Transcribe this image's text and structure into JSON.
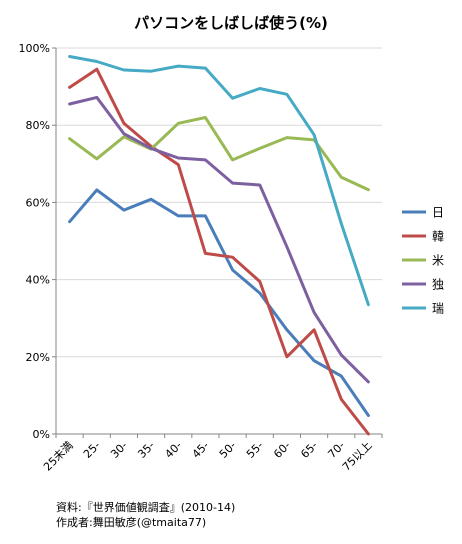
{
  "chart_data": {
    "type": "line",
    "title": "パソコンをしばしば使う(%)",
    "categories": [
      "25未満",
      "25-",
      "30-",
      "35-",
      "40-",
      "45-",
      "50-",
      "55-",
      "60-",
      "65-",
      "70-",
      "75以上"
    ],
    "ylim": [
      0,
      100
    ],
    "yticks": [
      "0%",
      "20%",
      "40%",
      "60%",
      "80%",
      "100%"
    ],
    "ytick_values": [
      0,
      20,
      40,
      60,
      80,
      100
    ],
    "grid": true,
    "legend_position": "right",
    "series": [
      {
        "name": "日",
        "color": "#4a7ebb",
        "values": [
          55.0,
          63.2,
          58.0,
          60.8,
          56.5,
          56.5,
          42.5,
          36.5,
          27.0,
          19.0,
          15.0,
          4.8
        ]
      },
      {
        "name": "韓",
        "color": "#be4b48",
        "values": [
          89.8,
          94.5,
          80.5,
          74.5,
          69.8,
          46.8,
          45.8,
          39.5,
          20.0,
          27.0,
          9.0,
          0.0
        ]
      },
      {
        "name": "米",
        "color": "#98b954",
        "values": [
          76.5,
          71.3,
          77.0,
          73.8,
          80.5,
          82.0,
          71.0,
          74.0,
          76.8,
          76.2,
          66.5,
          63.3
        ]
      },
      {
        "name": "独",
        "color": "#7d60a0",
        "values": [
          85.5,
          87.2,
          77.8,
          74.0,
          71.5,
          71.0,
          65.0,
          64.5,
          48.5,
          31.5,
          20.5,
          13.5
        ]
      },
      {
        "name": "瑞",
        "color": "#46aac5",
        "values": [
          97.8,
          96.5,
          94.3,
          94.0,
          95.3,
          94.8,
          87.0,
          89.5,
          88.0,
          77.5,
          54.5,
          33.5
        ]
      }
    ]
  },
  "notes": {
    "source": "資料:『世界価値観調査』(2010-14)",
    "author": "作成者:舞田敏彦(@tmaita77)"
  }
}
